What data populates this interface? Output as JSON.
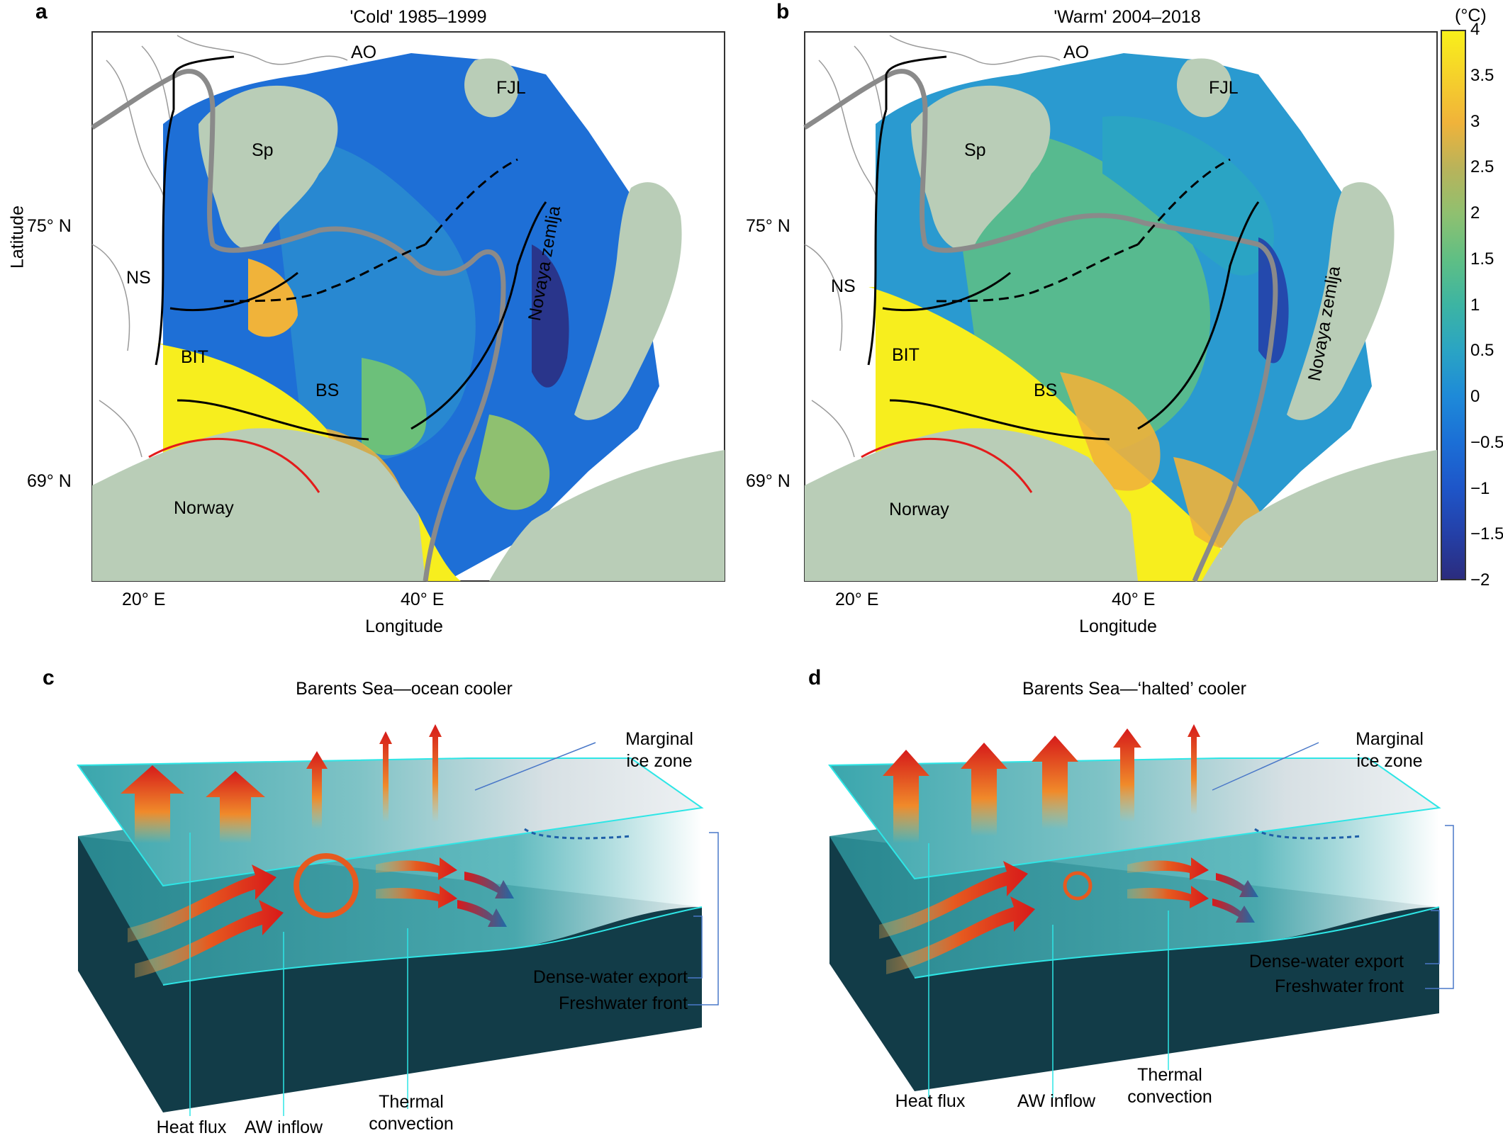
{
  "panels": {
    "a": {
      "letter": "a",
      "title": "'Cold' 1985–1999",
      "lat_ticks": [
        "75° N",
        "69° N"
      ],
      "lon_ticks": [
        "20° E",
        "40° E"
      ],
      "xlabel": "Longitude",
      "labels": {
        "ao": "AO",
        "fjl": "FJL",
        "sp": "Sp",
        "ns": "NS",
        "bit": "BIT",
        "bs": "BS",
        "norway": "Norway",
        "nz": "Novaya zemlja"
      }
    },
    "b": {
      "letter": "b",
      "title": "'Warm' 2004–2018",
      "lat_ticks": [
        "75° N",
        "69° N"
      ],
      "lon_ticks": [
        "20° E",
        "40° E"
      ],
      "xlabel": "Longitude",
      "labels": {
        "ao": "AO",
        "fjl": "FJL",
        "sp": "Sp",
        "ns": "NS",
        "bit": "BIT",
        "bs": "BS",
        "norway": "Norway",
        "nz": "Novaya zemlja"
      }
    },
    "c": {
      "letter": "c",
      "title": "Barents Sea—ocean cooler",
      "marginal_ice_zone": "Marginal\nice zone",
      "dense_water_export": "Dense-water export",
      "freshwater_front": "Freshwater front",
      "heat_flux": "Heat flux",
      "aw_inflow": "AW inflow",
      "thermal_convection": "Thermal\nconvection"
    },
    "d": {
      "letter": "d",
      "title": "Barents Sea—‘halted’ cooler",
      "marginal_ice_zone": "Marginal\nice zone",
      "dense_water_export": "Dense-water export",
      "freshwater_front": "Freshwater front",
      "heat_flux": "Heat flux",
      "aw_inflow": "AW inflow",
      "thermal_convection": "Thermal\nconvection"
    }
  },
  "ylabel": "Latitude",
  "colorbar": {
    "unit": "(°C)",
    "ticks": [
      "4",
      "3.5",
      "3",
      "2.5",
      "2",
      "1.5",
      "1",
      "0.5",
      "0",
      "−0.5",
      "−1",
      "−1.5",
      "−2"
    ],
    "colors": [
      "#f8f01a",
      "#f5d12b",
      "#f0b33a",
      "#b9b35a",
      "#8fc070",
      "#5fbf84",
      "#3cb4a3",
      "#2aa4c4",
      "#1e8ad8",
      "#1b6fd6",
      "#1e56c9",
      "#2440a8",
      "#2b2c7e"
    ],
    "range": [
      -2,
      4
    ]
  },
  "colors": {
    "land": "#b9cdb7",
    "ocean_deep": "#1e5bd0",
    "warm": "#f7ee1e",
    "track": "#8a8a8a",
    "arrow_red": "#e31b1b",
    "cyan_line": "#2ee6e6",
    "blue_line": "#4a78c8"
  }
}
